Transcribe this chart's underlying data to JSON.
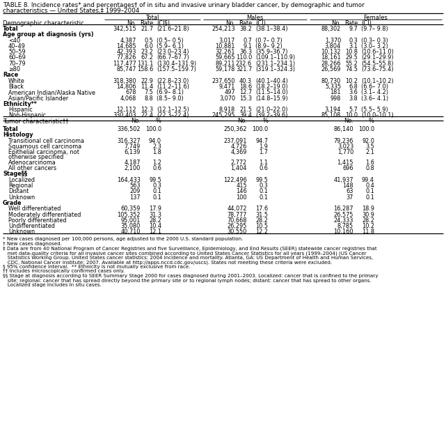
{
  "title_line1": "TABLE 8. Incidence rates* and percentages† of in situ and invasive urinary bladder cancer, by demographic and tumor",
  "title_line2": "characteristics — United States,‡ 1999–2004",
  "col_headers_grp": [
    "Total",
    "Males",
    "Females"
  ],
  "col_headers_sub_demo": [
    "No.",
    "Rate",
    "(CI§)",
    "No.",
    "Rate",
    "(CI)",
    "No.",
    "Rate",
    "(CI)"
  ],
  "col_headers_sub_tumor": [
    "No.",
    "%",
    "No.",
    "%",
    "No.",
    "%"
  ],
  "demo_rows": [
    {
      "label": "Total",
      "vals": [
        "342,515",
        "21.7",
        "(21.6–21.8)",
        "254,213",
        "38.2",
        "(38.1–38.4)",
        "88,302",
        "9.7",
        "(9.7– 9.8)"
      ],
      "bold": true,
      "indent": 0
    },
    {
      "label": "Age group at diagnosis (yrs)",
      "vals": [],
      "bold": true,
      "indent": 0
    },
    {
      "label": "<40",
      "vals": [
        "4,387",
        "0.5",
        "(0.5– 0.5)",
        "3,017",
        "0.7",
        "(0.7– 0.7)",
        "1,370",
        "0.3",
        "(0.3– 0.3)"
      ],
      "bold": false,
      "indent": 1
    },
    {
      "label": "40–49",
      "vals": [
        "14,685",
        "6.0",
        "(5.9– 6.1)",
        "10,881",
        "9.1",
        "(8.9– 9.2)",
        "3,804",
        "3.1",
        "(3.0– 3.2)"
      ],
      "bold": false,
      "indent": 1
    },
    {
      "label": "50–59",
      "vals": [
        "42,393",
        "23.2",
        "(23.0–23.4)",
        "32,261",
        "36.3",
        "(35.9–36.7)",
        "10,132",
        "10.8",
        "(10.6–11.0)"
      ],
      "bold": false,
      "indent": 1
    },
    {
      "label": "60–69",
      "vals": [
        "77,826",
        "67.2",
        "(66.7–67.7)",
        "59,665",
        "110.0",
        "(109.1–110.9)",
        "18,161",
        "29.5",
        "(29.1–29.9)"
      ],
      "bold": false,
      "indent": 1
    },
    {
      "label": "70–79",
      "vals": [
        "117,477",
        "131.1",
        "(130.4–131.9)",
        "89,211",
        "232.6",
        "(231.1–234.1)",
        "28,266",
        "55.2",
        "(54.5–55.8)"
      ],
      "bold": false,
      "indent": 1
    },
    {
      "label": "≥80",
      "vals": [
        "85,747",
        "158.6",
        "(157.5–159.7)",
        "59,178",
        "321.7",
        "(319.1–324.3)",
        "26,569",
        "74.5",
        "(73.6–75.4)"
      ],
      "bold": false,
      "indent": 1
    },
    {
      "label": "Race",
      "vals": [],
      "bold": true,
      "indent": 0
    },
    {
      "label": "White",
      "vals": [
        "318,380",
        "22.9",
        "(22.8–23.0)",
        "237,650",
        "40.3",
        "(40.1–40.4)",
        "80,730",
        "10.2",
        "(10.1–10.2)"
      ],
      "bold": false,
      "indent": 1
    },
    {
      "label": "Black",
      "vals": [
        "14,806",
        "11.4",
        "(11.2–11.6)",
        "9,471",
        "18.6",
        "(18.2–19.0)",
        "5,335",
        "6.8",
        "(6.6– 7.0)"
      ],
      "bold": false,
      "indent": 1
    },
    {
      "label": "American Indian/Alaska Native",
      "vals": [
        "678",
        "7.5",
        "(6.9– 8.1)",
        "497",
        "12.7",
        "(11.5–14.0)",
        "181",
        "3.6",
        "(3.1– 4.2)"
      ],
      "bold": false,
      "indent": 1
    },
    {
      "label": "Asian/Pacific Islander",
      "vals": [
        "4,068",
        "8.8",
        "(8.5– 9.0)",
        "3,070",
        "15.3",
        "(14.8–15.9)",
        "998",
        "3.8",
        "(3.6– 4.1)"
      ],
      "bold": false,
      "indent": 1
    },
    {
      "label": "Ethnicity**",
      "vals": [],
      "bold": true,
      "indent": 0
    },
    {
      "label": "Hispanic",
      "vals": [
        "12,112",
        "12.3",
        "(12.1–12.5)",
        "8,918",
        "21.5",
        "(21.0–22.0)",
        "3,194",
        "5.7",
        "(5.5– 5.9)"
      ],
      "bold": false,
      "indent": 1
    },
    {
      "label": "Non-Hispanic",
      "vals": [
        "330,403",
        "22.4",
        "(22.3–22.4)",
        "245,295",
        "39.4",
        "(39.2–39.6)",
        "85,108",
        "10.0",
        "(10.0–10.1)"
      ],
      "bold": false,
      "indent": 1
    }
  ],
  "tumor_rows": [
    {
      "label": "Total",
      "vals": [
        "336,502",
        "100.0",
        "250,362",
        "100.0",
        "86,140",
        "100.0"
      ],
      "bold": true,
      "indent": 0,
      "multiline": false
    },
    {
      "label": "Histology",
      "vals": [],
      "bold": true,
      "indent": 0,
      "multiline": false
    },
    {
      "label": "Transitional cell carcinoma",
      "vals": [
        "316,327",
        "94.0",
        "237,091",
        "94.7",
        "79,236",
        "92.0"
      ],
      "bold": false,
      "indent": 1,
      "multiline": false
    },
    {
      "label": "Squamous cell carcinoma",
      "vals": [
        "7,749",
        "2.3",
        "4,726",
        "1.9",
        "3,023",
        "3.5"
      ],
      "bold": false,
      "indent": 1,
      "multiline": false
    },
    {
      "label": "Epithelial carcinoma, not",
      "label2": "otherwise specified",
      "vals": [
        "6,139",
        "1.8",
        "4,369",
        "1.7",
        "1,770",
        "2.1"
      ],
      "bold": false,
      "indent": 1,
      "multiline": true
    },
    {
      "label": "Adenocarcinoma",
      "vals": [
        "4,187",
        "1.2",
        "2,772",
        "1.1",
        "1,415",
        "1.6"
      ],
      "bold": false,
      "indent": 1,
      "multiline": false
    },
    {
      "label": "All other cancers",
      "vals": [
        "2,100",
        "0.6",
        "1,404",
        "0.6",
        "696",
        "0.8"
      ],
      "bold": false,
      "indent": 1,
      "multiline": false
    },
    {
      "label": "Stage§§",
      "vals": [],
      "bold": true,
      "indent": 0,
      "multiline": false
    },
    {
      "label": "Localized",
      "vals": [
        "164,433",
        "99.5",
        "122,496",
        "99.5",
        "41,937",
        "99.4"
      ],
      "bold": false,
      "indent": 1,
      "multiline": false
    },
    {
      "label": "Regional",
      "vals": [
        "563",
        "0.3",
        "415",
        "0.3",
        "148",
        "0.4"
      ],
      "bold": false,
      "indent": 1,
      "multiline": false
    },
    {
      "label": "Distant",
      "vals": [
        "209",
        "0.1",
        "146",
        "0.1",
        "63",
        "0.1"
      ],
      "bold": false,
      "indent": 1,
      "multiline": false
    },
    {
      "label": "Unknown",
      "vals": [
        "137",
        "0.1",
        "100",
        "0.1",
        "37",
        "0.1"
      ],
      "bold": false,
      "indent": 1,
      "multiline": false
    },
    {
      "label": "Grade",
      "vals": [],
      "bold": true,
      "indent": 0,
      "multiline": false
    },
    {
      "label": "Well differentiated",
      "vals": [
        "60,359",
        "17.9",
        "44,072",
        "17.6",
        "16,287",
        "18.9"
      ],
      "bold": false,
      "indent": 1,
      "multiline": false
    },
    {
      "label": "Moderately differentiated",
      "vals": [
        "105,352",
        "31.3",
        "78,777",
        "31.5",
        "26,575",
        "30.9"
      ],
      "bold": false,
      "indent": 1,
      "multiline": false
    },
    {
      "label": "Poorly differentiated",
      "vals": [
        "95,001",
        "28.2",
        "70,668",
        "28.2",
        "24,333",
        "28.2"
      ],
      "bold": false,
      "indent": 1,
      "multiline": false
    },
    {
      "label": "Undifferentiated",
      "vals": [
        "35,080",
        "10.4",
        "26,295",
        "10.5",
        "8,785",
        "10.2"
      ],
      "bold": false,
      "indent": 1,
      "multiline": false
    },
    {
      "label": "Unknown",
      "vals": [
        "40,710",
        "12.1",
        "30,550",
        "12.2",
        "10,160",
        "11.8"
      ],
      "bold": false,
      "indent": 1,
      "multiline": false
    }
  ],
  "footnotes": [
    "* New cases diagnosed per 100,000 persons, age adjusted to the 2000 U.S. standard population.",
    "† New cases diagnosed.",
    "‡ Data are from 40 National Program of Cancer Registries and five Surveillance, Epidemiology, and End Results (SEER) statewide cancer registries that",
    "   met data-quality criteria for all invasive cancer sites combined according to United States Cancer Statistics for all years (1999–2004) (US Cancer",
    "   Statistics Working Group. United States cancer statistics: 2004 incidence and mortality. Atlanta, GA: US Department of Health and Human Services,",
    "   CDC, National Cancer Institute; 2007. Available at http://apps.nccd.cdc.gov/uscs). States not meeting these criteria were excluded.",
    "§ 95% confidence interval.  ** Ethnicity is not mutually exclusive from race.",
    "†† Includes microscopically confirmed cases only.",
    "§§ Stage at diagnosis according to SEER Summary Stage 2000 for cases diagnosed during 2001–2003. Localized: cancer that is confined to the primary",
    "   site; regional: cancer that has spread directly beyond the primary site or to regional lymph nodes; distant: cancer that has spread to other organs.",
    "   Localized stage includes in situ cases."
  ]
}
